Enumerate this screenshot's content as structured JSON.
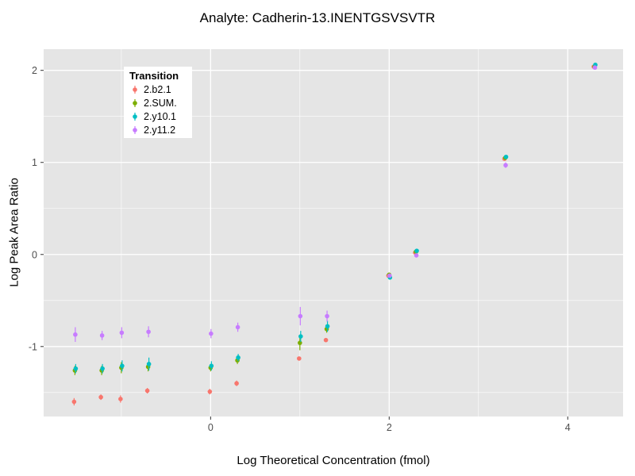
{
  "figure": {
    "title": "Analyte: Cadherin-13.INENTGSVSVTR"
  },
  "chart_data": {
    "type": "scatter",
    "title": "Analyte: Cadherin-13.INENTGSVSVTR",
    "xlabel": "Log Theoretical Concentration (fmol)",
    "ylabel": "Log Peak Area Ratio",
    "xlim": [
      -1.87,
      4.62
    ],
    "ylim": [
      -1.76,
      2.23
    ],
    "xticks": [
      0,
      2,
      4
    ],
    "yticks": [
      -1,
      0,
      1,
      2
    ],
    "xticks_minor": [
      -1,
      1,
      3
    ],
    "yticks_minor": [
      -1.5,
      -0.5,
      0.5,
      1.5
    ],
    "panel_color": "#E5E5E5",
    "grid_color": "#FFFFFF",
    "tick_color": "#333333",
    "tick_label_color": "#4D4D4D",
    "legend": {
      "title": "Transition",
      "position": "inside-top-left"
    },
    "x": [
      -1.52,
      -1.22,
      -1.0,
      -0.7,
      0.0,
      0.3,
      1.0,
      1.3,
      2.0,
      2.3,
      3.3,
      4.3
    ],
    "series": [
      {
        "name": "2.b2.1",
        "color": "#F8766D",
        "y": [
          -1.6,
          -1.55,
          -1.57,
          -1.48,
          -1.49,
          -1.4,
          -1.13,
          -0.93,
          -0.23,
          0.02,
          1.04,
          2.04
        ],
        "err": [
          0.04,
          0.03,
          0.04,
          0.03,
          0.03,
          0.03,
          0.02,
          0.02,
          0.02,
          0.01,
          0.02,
          0.01
        ]
      },
      {
        "name": "2.SUM.",
        "color": "#7CAE00",
        "y": [
          -1.26,
          -1.26,
          -1.23,
          -1.22,
          -1.23,
          -1.15,
          -0.96,
          -0.81,
          -0.22,
          0.03,
          1.05,
          2.04
        ],
        "err": [
          0.05,
          0.05,
          0.06,
          0.05,
          0.04,
          0.04,
          0.08,
          0.04,
          0.02,
          0.01,
          0.01,
          0.01
        ]
      },
      {
        "name": "2.y10.1",
        "color": "#00BFC4",
        "y": [
          -1.24,
          -1.24,
          -1.21,
          -1.19,
          -1.21,
          -1.12,
          -0.89,
          -0.78,
          -0.25,
          0.04,
          1.06,
          2.06
        ],
        "err": [
          0.05,
          0.05,
          0.06,
          0.07,
          0.05,
          0.04,
          0.06,
          0.06,
          0.02,
          0.01,
          0.01,
          0.01
        ]
      },
      {
        "name": "2.y11.2",
        "color": "#C77CFF",
        "y": [
          -0.87,
          -0.88,
          -0.85,
          -0.84,
          -0.86,
          -0.79,
          -0.67,
          -0.67,
          -0.23,
          -0.01,
          0.97,
          2.03
        ],
        "err": [
          0.08,
          0.05,
          0.06,
          0.06,
          0.05,
          0.05,
          0.1,
          0.06,
          0.02,
          0.02,
          0.03,
          0.01
        ]
      }
    ]
  }
}
